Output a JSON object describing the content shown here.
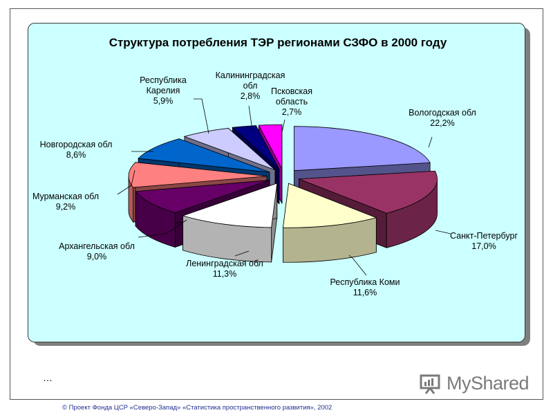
{
  "chart_data": {
    "type": "pie",
    "title": "Структура потребления ТЭР регионами СЗФО в 2000 году",
    "slices": [
      {
        "label_lines": [
          "Вологодская обл",
          "22,2%"
        ],
        "value": 22.2,
        "color": "#9999ff"
      },
      {
        "label_lines": [
          "Санкт-Петербург",
          "17,0%"
        ],
        "value": 17.0,
        "color": "#993366"
      },
      {
        "label_lines": [
          "Республика Коми",
          "11,6%"
        ],
        "value": 11.6,
        "color": "#ffffcc"
      },
      {
        "label_lines": [
          "Ленинградская обл",
          "11,3%"
        ],
        "value": 11.3,
        "color": "#ffffff"
      },
      {
        "label_lines": [
          "Архангельская обл",
          "9,0%"
        ],
        "value": 9.0,
        "color": "#660066"
      },
      {
        "label_lines": [
          "Мурманская обл",
          "9,2%"
        ],
        "value": 9.2,
        "color": "#ff8080"
      },
      {
        "label_lines": [
          "Новгородская обл",
          "8,6%"
        ],
        "value": 8.6,
        "color": "#0066cc"
      },
      {
        "label_lines": [
          "Республика",
          "Карелия",
          "5,9%"
        ],
        "value": 5.9,
        "color": "#ccccff"
      },
      {
        "label_lines": [
          "Калининградская",
          "обл",
          "2,8%"
        ],
        "value": 2.8,
        "color": "#000080"
      },
      {
        "label_lines": [
          "Псковская",
          "область",
          "2,7%"
        ],
        "value": 2.7,
        "color": "#ff00ff"
      }
    ]
  },
  "page": {
    "ellipsis": "…",
    "footer": "© Проект Фонда ЦСР «Северо-Запад» «Статистика пространственного развития», 2002",
    "watermark_text": "MyShared"
  }
}
